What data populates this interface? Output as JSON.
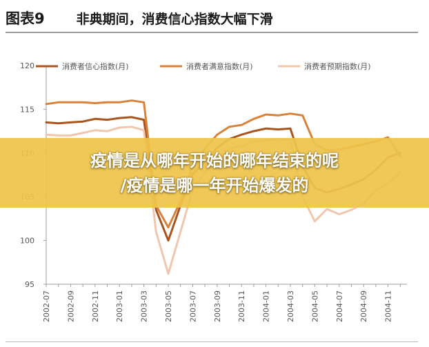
{
  "header": {
    "figure_label": "图表9",
    "title": "非典期间，消费信心指数大幅下滑"
  },
  "overlay": {
    "line1": "疫情是从哪年开始的哪年结束的呢",
    "line2": "/疫情是哪一年开始爆发的"
  },
  "chart_data": {
    "type": "line",
    "categories": [
      "2002-07",
      "2002-08",
      "2002-09",
      "2002-10",
      "2002-11",
      "2002-12",
      "2003-01",
      "2003-02",
      "2003-03",
      "2003-04",
      "2003-05",
      "2003-06",
      "2003-07",
      "2003-08",
      "2003-09",
      "2003-10",
      "2003-11",
      "2003-12",
      "2004-01",
      "2004-02",
      "2004-03",
      "2004-04",
      "2004-05",
      "2004-06",
      "2004-07",
      "2004-08",
      "2004-09",
      "2004-10",
      "2004-11",
      "2004-12"
    ],
    "tick_labels": [
      "2002-07",
      "2002-09",
      "2002-11",
      "2003-01",
      "2003-03",
      "2003-05",
      "2003-07",
      "2003-09",
      "2003-11",
      "2004-01",
      "2004-03",
      "2004-05",
      "2004-07",
      "2004-09",
      "2004-11"
    ],
    "y_ticks": [
      95,
      100,
      105,
      110,
      115,
      120
    ],
    "ylim": [
      95,
      120
    ],
    "legend_position": "top",
    "grid": false,
    "series": [
      {
        "name": "消费者信心指数(月)",
        "color": "#a9541e",
        "values": [
          113.5,
          113.4,
          113.5,
          113.6,
          113.9,
          113.8,
          114.0,
          114.1,
          113.8,
          103.5,
          100.0,
          104.0,
          107.6,
          109.0,
          110.6,
          111.6,
          112.1,
          112.5,
          112.8,
          112.7,
          112.8,
          108.5,
          106.0,
          105.5,
          105.9,
          106.4,
          107.0,
          108.1,
          109.5,
          110.0
        ]
      },
      {
        "name": "消费者满意指数(月)",
        "color": "#d98139",
        "values": [
          115.6,
          115.8,
          115.8,
          115.8,
          115.7,
          115.8,
          115.8,
          116.0,
          115.8,
          104.0,
          101.5,
          104.5,
          108.5,
          110.5,
          112.1,
          113.0,
          113.2,
          113.9,
          114.4,
          114.3,
          114.5,
          114.3,
          111.0,
          110.3,
          110.4,
          110.7,
          111.0,
          111.3,
          111.8,
          109.6
        ]
      },
      {
        "name": "消费者预期指数(月)",
        "color": "#f0c6ad",
        "values": [
          112.1,
          112.0,
          112.0,
          112.3,
          112.6,
          112.5,
          112.9,
          113.0,
          112.6,
          101.0,
          96.2,
          101.0,
          105.8,
          107.8,
          109.3,
          110.5,
          110.8,
          111.3,
          111.5,
          111.6,
          111.5,
          105.0,
          102.2,
          103.6,
          103.0,
          103.5,
          104.2,
          105.8,
          106.5,
          107.8
        ]
      }
    ]
  }
}
